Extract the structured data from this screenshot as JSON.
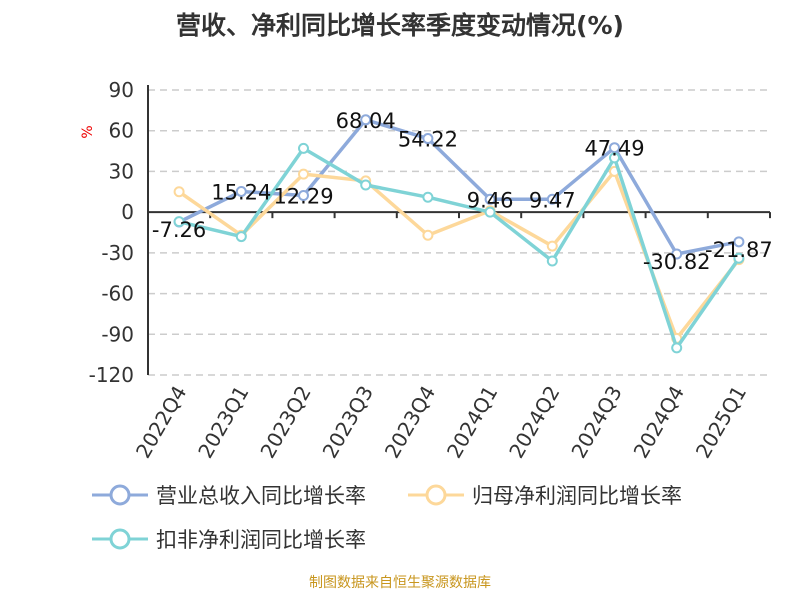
{
  "title": "营收、净利同比增长率季度变动情况(%)",
  "source": "制图数据来自恒生聚源数据库",
  "chart_data": {
    "type": "line",
    "title": "营收、净利同比增长率季度变动情况(%)",
    "ylabel": "%",
    "ylim": [
      -120,
      90
    ],
    "yticks": [
      90,
      60,
      30,
      0,
      -30,
      -60,
      -90,
      -120
    ],
    "grid": true,
    "legend_position": "bottom",
    "categories": [
      "2022Q4",
      "2023Q1",
      "2023Q2",
      "2023Q3",
      "2023Q4",
      "2024Q1",
      "2024Q2",
      "2024Q3",
      "2024Q4",
      "2025Q1"
    ],
    "series": [
      {
        "name": "营业总收入同比增长率",
        "color": "#8eaadb",
        "values": [
          -7.26,
          15.24,
          12.29,
          68.04,
          54.22,
          9.46,
          9.47,
          47.49,
          -30.82,
          -21.87
        ],
        "labels": true
      },
      {
        "name": "归母净利润同比增长率",
        "color": "#fdd89a",
        "values": [
          15,
          -17,
          28,
          23,
          -17,
          1,
          -25,
          30,
          -93,
          -35
        ],
        "labels": false
      },
      {
        "name": "扣非净利润同比增长率",
        "color": "#7fd3d6",
        "values": [
          -7,
          -18,
          47,
          20,
          11,
          0,
          -36,
          40,
          -100,
          -34
        ],
        "labels": false
      }
    ]
  }
}
